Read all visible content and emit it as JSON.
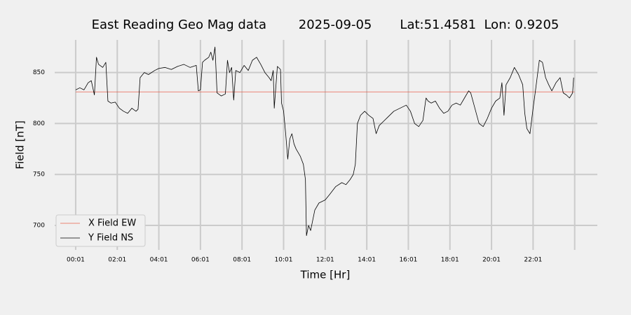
{
  "chart_data": {
    "type": "line",
    "title": "East Reading Geo Mag data        2025-09-05       Lat:51.4581  Lon: 0.9205",
    "x_label": "Time  [Hr]",
    "y_label": "Field  [nT]",
    "xlim": [
      -1.01,
      25.09
    ],
    "ylim": [
      676,
      882
    ],
    "xticks": [
      {
        "value": 0,
        "label": "00:01"
      },
      {
        "value": 2,
        "label": "02:01"
      },
      {
        "value": 4,
        "label": "04:01"
      },
      {
        "value": 6,
        "label": "06:01"
      },
      {
        "value": 8,
        "label": "08:01"
      },
      {
        "value": 10,
        "label": "10:01"
      },
      {
        "value": 12,
        "label": "12:01"
      },
      {
        "value": 14,
        "label": "14:01"
      },
      {
        "value": 16,
        "label": "16:01"
      },
      {
        "value": 18,
        "label": "18:01"
      },
      {
        "value": 20,
        "label": "20:01"
      },
      {
        "value": 22,
        "label": "22:01"
      },
      {
        "value": 24,
        "label": null
      }
    ],
    "yticks": [
      700,
      750,
      800,
      850
    ],
    "grid": true,
    "legend": "lower left",
    "series": [
      {
        "name": "X Field EW",
        "color": "#e8604c",
        "x": [
          0,
          24
        ],
        "values": [
          831,
          831
        ]
      },
      {
        "name": "Y Field NS",
        "color": "#000000",
        "x": [
          0,
          0.2,
          0.4,
          0.6,
          0.75,
          0.9,
          1.0,
          1.1,
          1.3,
          1.45,
          1.55,
          1.7,
          1.9,
          2.1,
          2.3,
          2.5,
          2.7,
          2.9,
          3.0,
          3.1,
          3.3,
          3.5,
          3.8,
          4.0,
          4.3,
          4.6,
          4.9,
          5.2,
          5.5,
          5.8,
          5.9,
          6.0,
          6.1,
          6.2,
          6.4,
          6.5,
          6.6,
          6.7,
          6.8,
          7.0,
          7.2,
          7.3,
          7.4,
          7.5,
          7.6,
          7.7,
          7.9,
          8.1,
          8.3,
          8.5,
          8.7,
          8.9,
          9.1,
          9.3,
          9.4,
          9.5,
          9.55,
          9.7,
          9.85,
          9.9,
          10.0,
          10.1,
          10.2,
          10.3,
          10.4,
          10.5,
          10.6,
          10.8,
          10.95,
          11.05,
          11.1,
          11.2,
          11.3,
          11.5,
          11.7,
          12.0,
          12.2,
          12.5,
          12.8,
          13.0,
          13.2,
          13.35,
          13.45,
          13.55,
          13.7,
          13.9,
          14.1,
          14.3,
          14.45,
          14.6,
          14.8,
          15.0,
          15.3,
          15.6,
          15.9,
          16.1,
          16.3,
          16.5,
          16.7,
          16.85,
          16.95,
          17.1,
          17.3,
          17.5,
          17.7,
          17.9,
          18.1,
          18.3,
          18.5,
          18.7,
          18.9,
          19.0,
          19.2,
          19.4,
          19.6,
          19.8,
          20.0,
          20.2,
          20.4,
          20.5,
          20.6,
          20.7,
          20.9,
          21.1,
          21.3,
          21.5,
          21.6,
          21.7,
          21.85,
          22.0,
          22.1,
          22.3,
          22.45,
          22.6,
          22.75,
          22.9,
          23.1,
          23.3,
          23.45,
          23.6,
          23.75,
          23.9,
          23.95
        ],
        "values": [
          833,
          835,
          833,
          840,
          842,
          828,
          865,
          858,
          855,
          860,
          822,
          820,
          821,
          815,
          812,
          810,
          815,
          812,
          814,
          845,
          850,
          848,
          852,
          854,
          855,
          853,
          856,
          858,
          855,
          857,
          832,
          833,
          860,
          862,
          865,
          870,
          862,
          875,
          830,
          827,
          829,
          862,
          850,
          855,
          823,
          852,
          850,
          857,
          852,
          862,
          865,
          858,
          850,
          845,
          842,
          852,
          815,
          856,
          853,
          820,
          812,
          790,
          765,
          785,
          790,
          780,
          775,
          768,
          760,
          745,
          690,
          700,
          695,
          715,
          722,
          725,
          730,
          738,
          742,
          740,
          745,
          750,
          760,
          800,
          808,
          812,
          808,
          805,
          790,
          798,
          802,
          806,
          812,
          815,
          818,
          812,
          800,
          797,
          803,
          825,
          822,
          820,
          822,
          815,
          810,
          812,
          818,
          820,
          818,
          825,
          832,
          830,
          815,
          800,
          797,
          805,
          815,
          822,
          825,
          840,
          808,
          838,
          845,
          855,
          848,
          838,
          810,
          795,
          790,
          815,
          830,
          862,
          860,
          845,
          838,
          832,
          840,
          845,
          830,
          828,
          825,
          830,
          845
        ]
      }
    ]
  }
}
